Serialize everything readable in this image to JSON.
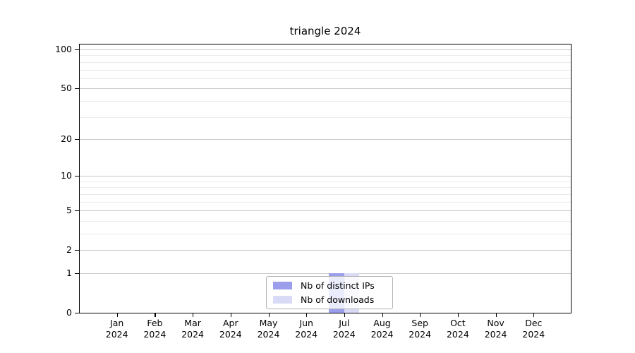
{
  "title": "triangle 2024",
  "chart_data": {
    "type": "bar",
    "title": "triangle 2024",
    "categories": [
      "Jan",
      "Feb",
      "Mar",
      "Apr",
      "May",
      "Jun",
      "Jul",
      "Aug",
      "Sep",
      "Oct",
      "Nov",
      "Dec"
    ],
    "category_year": "2024",
    "series": [
      {
        "name": "Nb of distinct IPs",
        "color": "#9b9eeb",
        "values": [
          0,
          0,
          0,
          0,
          0,
          0,
          1,
          0,
          0,
          0,
          0,
          0
        ]
      },
      {
        "name": "Nb of downloads",
        "color": "#d9dbf6",
        "values": [
          0,
          0,
          0,
          0,
          0,
          0,
          1,
          0,
          0,
          0,
          0,
          0
        ]
      }
    ],
    "xlabel": "",
    "ylabel": "",
    "y_scale": "log(x+1)",
    "ylim": [
      0,
      110
    ],
    "y_major_ticks": [
      100,
      50,
      20,
      10,
      5,
      2,
      1,
      0
    ],
    "y_minor_gridlines": [
      3,
      4,
      6,
      7,
      8,
      9,
      30,
      40,
      60,
      70,
      80,
      90
    ],
    "grid": "horizontal",
    "legend_position": "lower center",
    "colors": {
      "major_grid": "#c9c9c9",
      "minor_grid": "#ebebeb",
      "axis": "#000000",
      "legend_border": "#b3b3b3",
      "text": "#000000"
    }
  }
}
